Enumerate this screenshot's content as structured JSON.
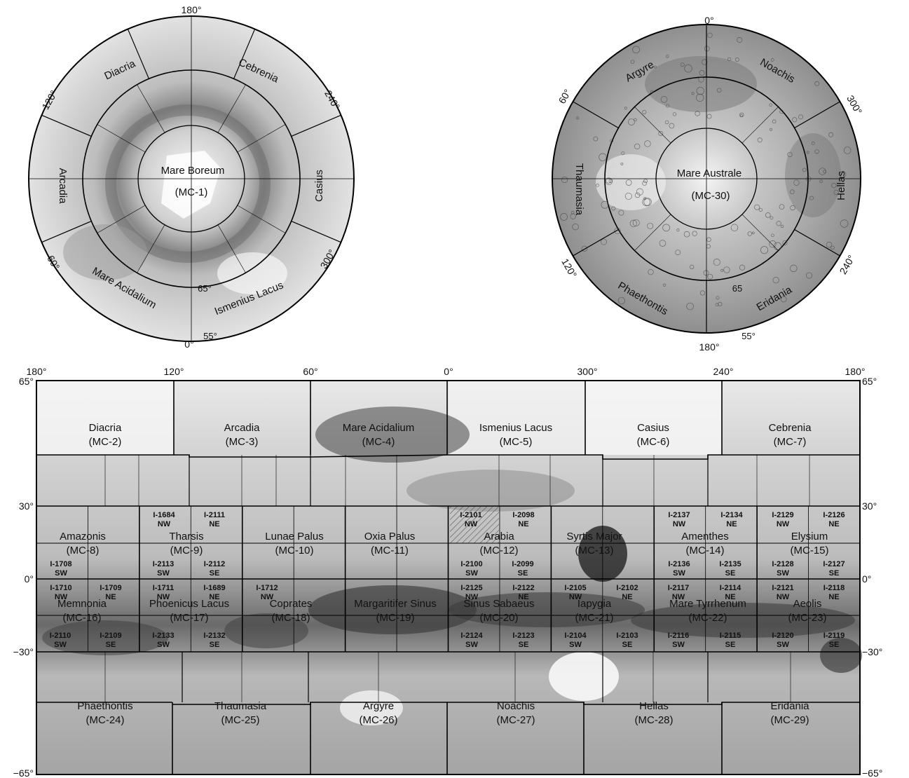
{
  "north_polar": {
    "degree_labels": [
      "180°",
      "240°",
      "300°",
      "0°",
      "60°",
      "120°",
      "65°",
      "55°"
    ],
    "regions": [
      {
        "name": "Diacria"
      },
      {
        "name": "Cebrenia"
      },
      {
        "name": "Casius"
      },
      {
        "name": "Ismenius Lacus"
      },
      {
        "name": "Mare Acidalium"
      },
      {
        "name": "Arcadia"
      }
    ],
    "center_name": "Mare Boreum",
    "center_code": "(MC-1)"
  },
  "south_polar": {
    "degree_labels": [
      "0°",
      "300°",
      "240°",
      "180°",
      "120°",
      "60°",
      "65",
      "55°"
    ],
    "regions": [
      {
        "name": "Noachis"
      },
      {
        "name": "Hellas"
      },
      {
        "name": "Eridania"
      },
      {
        "name": "Phaethontis"
      },
      {
        "name": "Thaumasia"
      },
      {
        "name": "Argyre"
      }
    ],
    "center_name": "Mare Australe",
    "center_code": "(MC-30)"
  },
  "mercator": {
    "top_longitudes": [
      "180°",
      "120°",
      "60°",
      "0°",
      "300°",
      "240°",
      "180°"
    ],
    "left_latitudes": [
      "65°",
      "30°",
      "0°",
      "−30°",
      "−65°"
    ],
    "right_latitudes": [
      "65°",
      "30°",
      "0°",
      "−30°",
      "−65°"
    ],
    "quadrangles": [
      {
        "name": "Diacria",
        "code": "(MC-2)"
      },
      {
        "name": "Arcadia",
        "code": "(MC-3)"
      },
      {
        "name": "Mare Acidalium",
        "code": "(MC-4)"
      },
      {
        "name": "Ismenius Lacus",
        "code": "(MC-5)"
      },
      {
        "name": "Casius",
        "code": "(MC-6)"
      },
      {
        "name": "Cebrenia",
        "code": "(MC-7)"
      },
      {
        "name": "Amazonis",
        "code": "(MC-8)"
      },
      {
        "name": "Tharsis",
        "code": "(MC-9)"
      },
      {
        "name": "Lunae Palus",
        "code": "(MC-10)"
      },
      {
        "name": "Oxia Palus",
        "code": "(MC-11)"
      },
      {
        "name": "Arabia",
        "code": "(MC-12)"
      },
      {
        "name": "Syrtis Major",
        "code": "(MC-13)"
      },
      {
        "name": "Amenthes",
        "code": "(MC-14)"
      },
      {
        "name": "Elysium",
        "code": "(MC-15)"
      },
      {
        "name": "Memnonia",
        "code": "(MC-16)"
      },
      {
        "name": "Phoenicus Lacus",
        "code": "(MC-17)"
      },
      {
        "name": "Coprates",
        "code": "(MC-18)"
      },
      {
        "name": "Margaritifer Sinus",
        "code": "(MC-19)"
      },
      {
        "name": "Sinus Sabaeus",
        "code": "(MC-20)"
      },
      {
        "name": "Iapygia",
        "code": "(MC-21)"
      },
      {
        "name": "Mare Tyrrhenum",
        "code": "(MC-22)"
      },
      {
        "name": "Aeolis",
        "code": "(MC-23)"
      },
      {
        "name": "Phaethontis",
        "code": "(MC-24)"
      },
      {
        "name": "Thaumasia",
        "code": "(MC-25)"
      },
      {
        "name": "Argyre",
        "code": "(MC-26)"
      },
      {
        "name": "Noachis",
        "code": "(MC-27)"
      },
      {
        "name": "Hellas",
        "code": "(MC-28)"
      },
      {
        "name": "Eridania",
        "code": "(MC-29)"
      }
    ],
    "sheets": [
      {
        "id": "I-1684",
        "part": "NW"
      },
      {
        "id": "I-2111",
        "part": "NE"
      },
      {
        "id": "I-2101",
        "part": "NW"
      },
      {
        "id": "I-2098",
        "part": "NE"
      },
      {
        "id": "I-2137",
        "part": "NW"
      },
      {
        "id": "I-2134",
        "part": "NE"
      },
      {
        "id": "I-2129",
        "part": "NW"
      },
      {
        "id": "I-2126",
        "part": "NE"
      },
      {
        "id": "I-1708",
        "part": "SW"
      },
      {
        "id": "I-2113",
        "part": "SW"
      },
      {
        "id": "I-2112",
        "part": "SE"
      },
      {
        "id": "I-2100",
        "part": "SW"
      },
      {
        "id": "I-2099",
        "part": "SE"
      },
      {
        "id": "I-2136",
        "part": "SW"
      },
      {
        "id": "I-2135",
        "part": "SE"
      },
      {
        "id": "I-2128",
        "part": "SW"
      },
      {
        "id": "I-2127",
        "part": "SE"
      },
      {
        "id": "I-1710",
        "part": "NW"
      },
      {
        "id": "I-1709",
        "part": "NE"
      },
      {
        "id": "I-1711",
        "part": "NW"
      },
      {
        "id": "I-1689",
        "part": "NE"
      },
      {
        "id": "I-1712",
        "part": "NW"
      },
      {
        "id": "I-2125",
        "part": "NW"
      },
      {
        "id": "I-2122",
        "part": "NE"
      },
      {
        "id": "I-2105",
        "part": "NW"
      },
      {
        "id": "I-2102",
        "part": "NE"
      },
      {
        "id": "I-2117",
        "part": "NW"
      },
      {
        "id": "I-2114",
        "part": "NE"
      },
      {
        "id": "I-2121",
        "part": "NW"
      },
      {
        "id": "I-2118",
        "part": "NE"
      },
      {
        "id": "I-2110",
        "part": "SW"
      },
      {
        "id": "I-2109",
        "part": "SE"
      },
      {
        "id": "I-2133",
        "part": "SW"
      },
      {
        "id": "I-2132",
        "part": "SE"
      },
      {
        "id": "I-2124",
        "part": "SW"
      },
      {
        "id": "I-2123",
        "part": "SE"
      },
      {
        "id": "I-2104",
        "part": "SW"
      },
      {
        "id": "I-2103",
        "part": "SE"
      },
      {
        "id": "I-2116",
        "part": "SW"
      },
      {
        "id": "I-2115",
        "part": "SE"
      },
      {
        "id": "I-2120",
        "part": "SW"
      },
      {
        "id": "I-2119",
        "part": "SE"
      }
    ]
  }
}
